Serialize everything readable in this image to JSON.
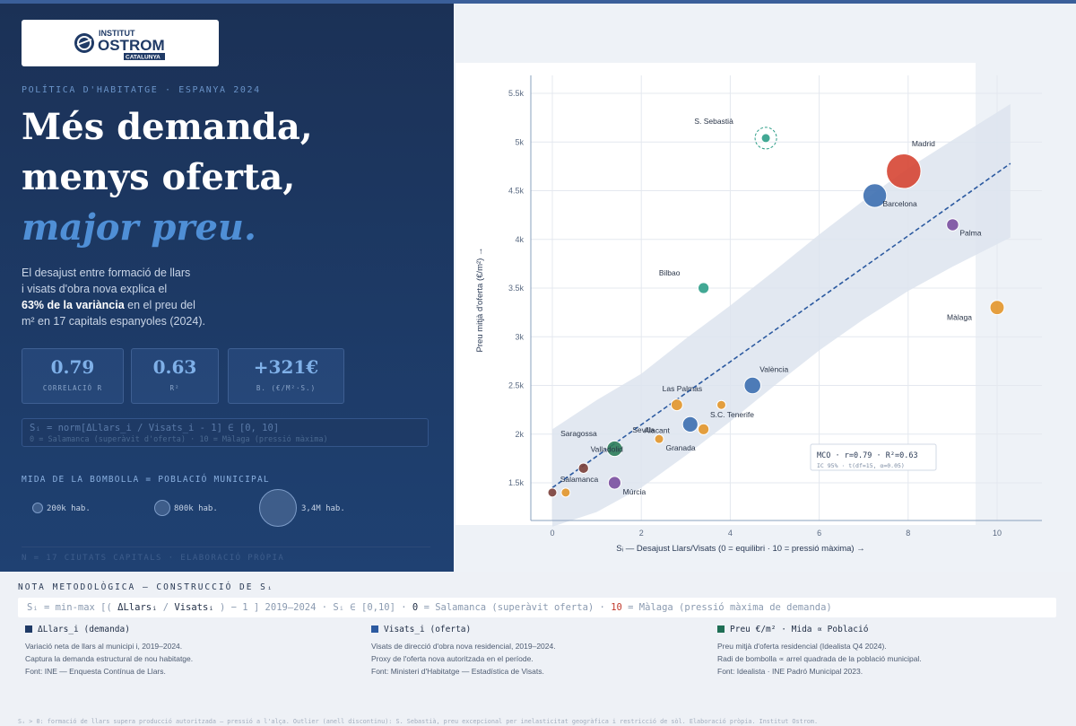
{
  "header": {
    "logo_line1": "INSTITUT",
    "logo_line2": "OSTROM",
    "logo_line3": "CATALUNYA",
    "kicker": "POLÍTICA D'HABITATGE · ESPANYA 2024",
    "headline_1": "Més demanda,",
    "headline_2": "menys oferta,",
    "headline_3": "major preu."
  },
  "lede": {
    "line1": "El desajust entre formació de llars",
    "line2": "i visats d'obra nova explica el",
    "bold": "63% de la variància",
    "line3_rest": " en el preu del",
    "line4": "m² en 17 capitals espanyoles (2024)."
  },
  "stats": [
    {
      "value": "0.79",
      "label": "CORRELACIÓ R"
    },
    {
      "value": "0.63",
      "label": "R²"
    },
    {
      "value": "+321€",
      "label": "B. (€/M²·S.)"
    }
  ],
  "formula": {
    "line1": "Sᵢ = norm[ΔLlars_i / Visats_i - 1] ∈ [0, 10]",
    "line2": "0 = Salamanca (superàvit d'oferta) · 10 = Màlaga (pressió màxima)"
  },
  "size_legend": {
    "title": "MIDA DE LA BOMBOLLA = POBLACIÓ MUNICIPAL",
    "items": [
      "200k hab.",
      "800k hab.",
      "3,4M hab."
    ]
  },
  "left_footer": "N = 17 CIUTATS CAPITALS · ELABORACIÓ PRÒPIA",
  "colors": {
    "demand": "#c0392b",
    "supply": "#2c5aa0",
    "price": "#1f6e55",
    "bubble_colors": [
      "#d64533",
      "#e3962a",
      "#2e9e88",
      "#7b4fa0",
      "#3d6fb0",
      "#7b3f3a"
    ]
  },
  "chart_data": {
    "type": "scatter",
    "xlabel": "Sᵢ — Desajust Llars/Visats (0 = equilibri · 10 = pressió màxima) →",
    "ylabel": "Preu mitjà d'oferta (€/m²) →",
    "xlim": [
      -0.5,
      11
    ],
    "ylim": [
      1250,
      5700
    ],
    "xticks": [
      "0",
      "2",
      "4",
      "6",
      "8",
      "10"
    ],
    "yticks": [
      "1.5k",
      "2k",
      "2.5k",
      "3k",
      "3.5k",
      "4k",
      "4.5k",
      "5k",
      "5.5k"
    ],
    "grid": true,
    "points": [
      {
        "label": "Madrid",
        "x": 7.9,
        "y": 4700,
        "size": "3.4M",
        "color": "#d64533"
      },
      {
        "label": "Barcelona",
        "x": 7.25,
        "y": 4450,
        "size": "1.6M",
        "color": "#3d6fb0"
      },
      {
        "label": "S. Sebastià",
        "x": 4.8,
        "y": 5040,
        "size": "190k",
        "color": "#2e9e88",
        "outlier": true
      },
      {
        "label": "Palma",
        "x": 9.0,
        "y": 4150,
        "size": "420k",
        "color": "#7b4fa0"
      },
      {
        "label": "Bilbao",
        "x": 3.4,
        "y": 3500,
        "size": "345k",
        "color": "#2e9e88"
      },
      {
        "label": "Màlaga",
        "x": 10.0,
        "y": 3300,
        "size": "580k",
        "color": "#e3962a"
      },
      {
        "label": "València",
        "x": 4.5,
        "y": 2500,
        "size": "790k",
        "color": "#3d6fb0"
      },
      {
        "label": "Las Palmas",
        "x": 2.8,
        "y": 2300,
        "size": "380k",
        "color": "#e3962a"
      },
      {
        "label": "S.C. Tenerife",
        "x": 3.8,
        "y": 2300,
        "size": "210k",
        "color": "#e3962a"
      },
      {
        "label": "Alacant",
        "x": 3.4,
        "y": 2050,
        "size": "340k",
        "color": "#e3962a"
      },
      {
        "label": "Sevilla",
        "x": 3.1,
        "y": 2100,
        "size": "680k",
        "color": "#3d6fb0"
      },
      {
        "label": "Granada",
        "x": 2.4,
        "y": 1950,
        "size": "230k",
        "color": "#e3962a"
      },
      {
        "label": "Saragossa",
        "x": 1.4,
        "y": 1850,
        "size": "680k",
        "color": "#2e7d5a"
      },
      {
        "label": "Valladolid",
        "x": 0.7,
        "y": 1650,
        "size": "300k",
        "color": "#7b3f3a"
      },
      {
        "label": "Múrcia",
        "x": 1.4,
        "y": 1500,
        "size": "460k",
        "color": "#7b4fa0"
      },
      {
        "label": "Salamanca",
        "x": 0.0,
        "y": 1400,
        "size": "145k",
        "color": "#7b3f3a"
      },
      {
        "label": "",
        "x": 0.3,
        "y": 1400,
        "size": "200k",
        "color": "#e3962a"
      }
    ],
    "regression": {
      "x": [
        0,
        10.3
      ],
      "y": [
        1450,
        4780
      ]
    },
    "annotation_line1": "MCO · r=0.79 · R²=0.63",
    "annotation_line2": "IC 95% · t(df=15, α=0.05)"
  },
  "methodology": {
    "title": "NOTA METODOLÒGICA — CONSTRUCCIÓ DE Sᵢ",
    "f_pre": "Sᵢ = min-max [( ",
    "f_a": "ΔLlarsᵢ",
    "f_mid": " / ",
    "f_b": "Visatsᵢ",
    "f_post": " ) − 1 ] 2019–2024 · Sᵢ ∈ [0,10] · ",
    "f_zero": "0",
    "f_zero_txt": " = Salamanca (superàvit oferta) · ",
    "f_ten": "10",
    "f_ten_txt": " = Màlaga (pressió màxima de demanda)",
    "columns": [
      {
        "head": "ΔLlars_i (demanda)",
        "l1": "Variació neta de llars al municipi i, 2019–2024.",
        "l2": "Captura la demanda estructural de nou habitatge.",
        "l3": "Font: INE — Enquesta Contínua de Llars."
      },
      {
        "head": "Visats_i (oferta)",
        "l1": "Visats de direcció d'obra nova residencial, 2019–2024.",
        "l2": "Proxy de l'oferta nova autoritzada en el període.",
        "l3": "Font: Ministeri d'Habitatge — Estadística de Visats."
      },
      {
        "head": "Preu €/m² · Mida ∝ Població",
        "l1": "Preu mitjà d'oferta residencial (Idealista Q4 2024).",
        "l2": "Radi de bombolla ∝ arrel quadrada de la població municipal.",
        "l3": "Font: Idealista · INE Padró Municipal 2023."
      }
    ],
    "footnote": "Sᵢ > 0: formació de llars supera producció autoritzada — pressió a l'alça. Outlier (anell discontinu): S. Sebastià, preu excepcional per inelasticitat geogràfica i restricció de sòl. Elaboració pròpia. Institut Ostrom."
  }
}
